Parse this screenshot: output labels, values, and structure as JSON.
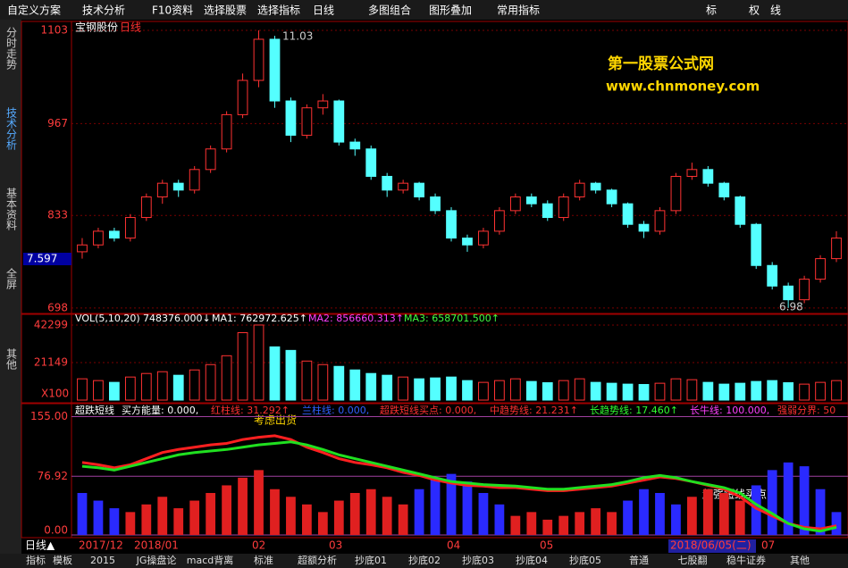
{
  "toolbar": {
    "items": [
      "自定义方案",
      "技术分析",
      "F10资料",
      "选择股票",
      "选择指标",
      "日线",
      "多图组合",
      "图形叠加",
      "常用指标"
    ],
    "right": [
      "标",
      "权",
      "线"
    ]
  },
  "sidebar": [
    "分时走势",
    "技术分析",
    "基本资料",
    "全屏",
    "其他"
  ],
  "price_panel": {
    "stock": "宝钢股份",
    "period": "日线",
    "ylim": [
      690,
      1116
    ],
    "yticks": [
      1103,
      967,
      833,
      698
    ],
    "current_label": "7.597",
    "high_label": "11.03",
    "low_label": "6.98",
    "watermark": [
      "第一股票公式网",
      "www.chnmoney.com"
    ],
    "candles": [
      [
        780,
        800,
        770,
        790
      ],
      [
        790,
        815,
        785,
        810
      ],
      [
        810,
        815,
        795,
        800
      ],
      [
        800,
        835,
        795,
        830
      ],
      [
        830,
        865,
        825,
        860
      ],
      [
        860,
        885,
        850,
        880
      ],
      [
        880,
        885,
        860,
        870
      ],
      [
        870,
        905,
        865,
        900
      ],
      [
        900,
        935,
        895,
        930
      ],
      [
        930,
        985,
        925,
        980
      ],
      [
        980,
        1040,
        975,
        1030
      ],
      [
        1030,
        1103,
        1020,
        1090
      ],
      [
        1090,
        1095,
        990,
        1000
      ],
      [
        1000,
        1005,
        940,
        950
      ],
      [
        950,
        995,
        945,
        990
      ],
      [
        990,
        1010,
        980,
        1000
      ],
      [
        1000,
        1002,
        935,
        940
      ],
      [
        940,
        945,
        920,
        930
      ],
      [
        930,
        935,
        885,
        890
      ],
      [
        890,
        895,
        860,
        870
      ],
      [
        870,
        885,
        865,
        880
      ],
      [
        880,
        882,
        855,
        860
      ],
      [
        860,
        865,
        835,
        840
      ],
      [
        840,
        845,
        795,
        800
      ],
      [
        800,
        805,
        780,
        790
      ],
      [
        790,
        815,
        785,
        810
      ],
      [
        810,
        845,
        805,
        840
      ],
      [
        840,
        865,
        835,
        860
      ],
      [
        860,
        865,
        845,
        850
      ],
      [
        850,
        855,
        825,
        830
      ],
      [
        830,
        865,
        825,
        860
      ],
      [
        860,
        885,
        855,
        880
      ],
      [
        880,
        882,
        865,
        870
      ],
      [
        870,
        872,
        845,
        850
      ],
      [
        850,
        852,
        815,
        820
      ],
      [
        820,
        825,
        800,
        810
      ],
      [
        810,
        845,
        805,
        840
      ],
      [
        840,
        895,
        835,
        890
      ],
      [
        890,
        910,
        885,
        900
      ],
      [
        900,
        905,
        875,
        880
      ],
      [
        880,
        882,
        855,
        860
      ],
      [
        860,
        862,
        815,
        820
      ],
      [
        820,
        822,
        755,
        760
      ],
      [
        760,
        765,
        725,
        730
      ],
      [
        730,
        735,
        698,
        710
      ],
      [
        710,
        745,
        705,
        740
      ],
      [
        740,
        775,
        735,
        770
      ],
      [
        770,
        810,
        765,
        800
      ]
    ],
    "up_color": "#ff3232",
    "down_color": "#54ffff"
  },
  "volume_panel": {
    "legend": [
      "VOL(5,10,20)",
      "748376.000↓",
      "MA1: 762972.625↑",
      "MA2: 856660.313↑",
      "MA3: 658701.500↑"
    ],
    "ylim": [
      0,
      46300
    ],
    "yticks": [
      42299,
      21149
    ],
    "unit": "X100",
    "values": [
      12000,
      11000,
      10000,
      13000,
      15000,
      16000,
      14000,
      17000,
      20000,
      25000,
      38000,
      42299,
      30000,
      28000,
      22000,
      20000,
      19000,
      17000,
      15000,
      14000,
      13000,
      12000,
      12500,
      13000,
      11000,
      10000,
      11000,
      12000,
      10500,
      9800,
      11000,
      12000,
      10000,
      9500,
      9000,
      8800,
      9500,
      12000,
      11500,
      10000,
      9000,
      9500,
      10500,
      11000,
      9800,
      9000,
      10000,
      11000
    ]
  },
  "indicator_panel": {
    "legend": [
      "超跌短线",
      "买方能量: 0.000,",
      "红柱线: 31.292↑",
      "兰柱线: 0.000,",
      "超跌短线买点: 0.000,",
      "中趋势线: 21.231↑",
      "长趋势线: 17.460↑",
      "长牛线: 100.000,",
      "强弱分界: 50"
    ],
    "ylim": [
      0,
      165
    ],
    "yticks": [
      155.0,
      76.92,
      0.0
    ],
    "ytick_labels": [
      "155.00",
      "76.92",
      "0.00"
    ],
    "annotations": [
      "考虑出货",
      "超强短线买点"
    ],
    "series": [
      {
        "name": "兰柱线",
        "color": "#2a2aff",
        "values": [
          55,
          45,
          35,
          null,
          null,
          null,
          null,
          null,
          null,
          null,
          null,
          null,
          null,
          null,
          null,
          null,
          null,
          null,
          null,
          null,
          null,
          60,
          75,
          80,
          70,
          55,
          40,
          null,
          null,
          null,
          null,
          null,
          null,
          null,
          45,
          60,
          55,
          40,
          null,
          null,
          null,
          null,
          65,
          85,
          95,
          90,
          60,
          30
        ]
      },
      {
        "name": "红柱线",
        "color": "#e02020",
        "values": [
          null,
          null,
          null,
          30,
          40,
          50,
          35,
          45,
          55,
          65,
          75,
          85,
          60,
          50,
          40,
          30,
          45,
          55,
          60,
          50,
          40,
          null,
          null,
          null,
          null,
          null,
          null,
          25,
          30,
          20,
          25,
          30,
          35,
          30,
          null,
          null,
          null,
          null,
          50,
          60,
          55,
          45,
          null,
          null,
          null,
          null,
          null,
          null
        ]
      },
      {
        "name": "中趋势线",
        "color": "#ff2020",
        "values": [
          95,
          92,
          88,
          92,
          100,
          108,
          112,
          115,
          118,
          120,
          125,
          128,
          130,
          125,
          115,
          108,
          100,
          95,
          92,
          88,
          82,
          78,
          72,
          68,
          65,
          64,
          62,
          62,
          60,
          58,
          58,
          60,
          62,
          64,
          68,
          72,
          76,
          74,
          70,
          65,
          60,
          50,
          35,
          25,
          15,
          10,
          8,
          12
        ]
      },
      {
        "name": "长趋势线",
        "color": "#20e020",
        "values": [
          90,
          88,
          85,
          90,
          95,
          100,
          105,
          108,
          110,
          112,
          115,
          118,
          120,
          122,
          118,
          112,
          105,
          100,
          95,
          90,
          85,
          80,
          75,
          70,
          68,
          66,
          65,
          64,
          62,
          60,
          60,
          62,
          64,
          66,
          70,
          75,
          78,
          75,
          70,
          66,
          62,
          55,
          40,
          28,
          15,
          8,
          5,
          10
        ]
      }
    ]
  },
  "date_bar": [
    "日线▲",
    "2017/12",
    "2018/01",
    "02",
    "03",
    "04",
    "05",
    "2018/06/05(二)",
    "07"
  ],
  "bottom_tabs": [
    "指标",
    "模板",
    "2015",
    "JG操盘论",
    "macd背离",
    "标准",
    "超额分析",
    "抄底01",
    "抄底02",
    "抄底03",
    "抄底04",
    "抄底05",
    "普通",
    "七股翻",
    "稳牛证券",
    "其他"
  ]
}
